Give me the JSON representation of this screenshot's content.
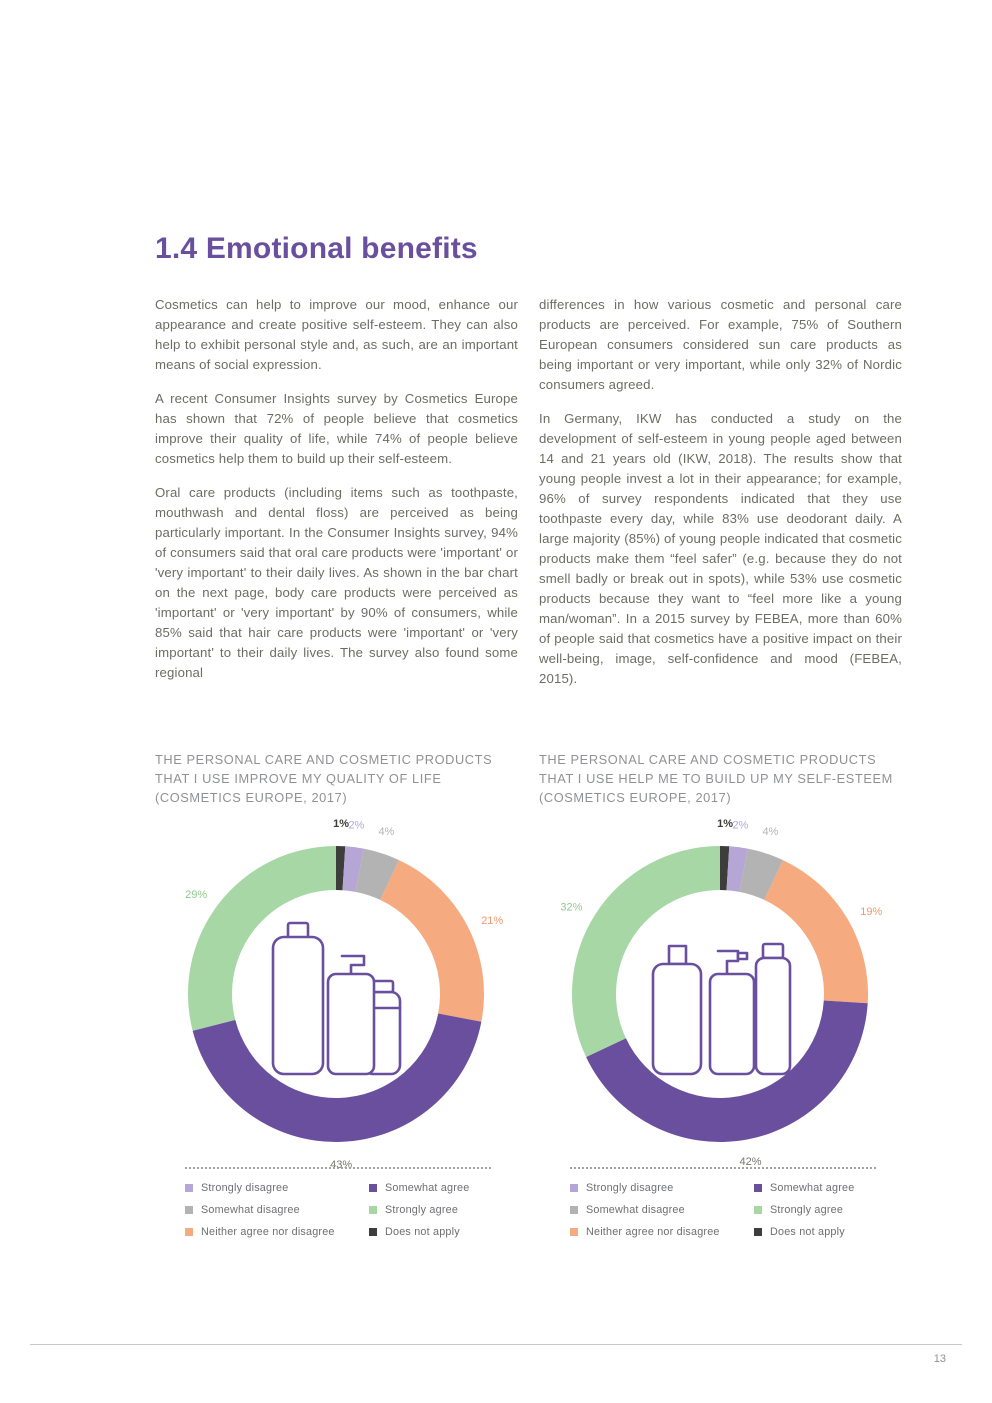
{
  "page": {
    "title": "1.4 Emotional benefits",
    "page_number": "13"
  },
  "body": {
    "left_column": [
      "Cosmetics can help to improve our mood, enhance our appearance and create positive self-esteem. They can also help to exhibit personal style and, as such, are an important means of social expression.",
      "A recent Consumer Insights survey by Cosmetics Europe has shown that 72% of people believe that cosmetics improve their quality of life, while 74% of people believe cosmetics help them to build up their self-esteem.",
      "Oral care products (including items such as toothpaste, mouthwash and dental floss) are perceived as being particularly important. In the Consumer Insights survey, 94% of consumers said that oral care products were 'important' or 'very important' to their daily lives. As shown in the bar chart on the next page, body care products were perceived as 'important' or 'very important' by 90% of consumers, while 85% said that hair care products were 'important' or 'very important' to their daily lives. The survey also found some regional"
    ],
    "right_column": [
      "differences in how various cosmetic and personal care products are perceived. For example, 75% of Southern European consumers considered sun care products as being important or very important, while only 32% of Nordic consumers agreed.",
      "In Germany, IKW has conducted a study on the development of self-esteem in young people aged between 14 and 21 years old (IKW, 2018). The results show that young people invest a lot in their appearance; for example, 96% of survey respondents indicated that they use toothpaste every day, while 83% use deodorant daily. A large majority (85%) of young people indicated that cosmetic products make them “feel safer” (e.g. because they do not smell badly or break out in spots), while 53% use cosmetic products because they want to “feel more like a young man/woman”. In a 2015 survey by FEBEA, more than 60% of people said that cosmetics have a positive impact on their well-being, image, self-confidence and mood (FEBEA, 2015)."
    ],
    "legend_order": [
      "Strongly disagree",
      "Somewhat disagree",
      "Neither agree nor disagree",
      "Somewhat agree",
      "Strongly agree",
      "Does not apply"
    ]
  },
  "colors": {
    "accent_purple": "#6a4f9e",
    "strongly_disagree": "#b5a6d5",
    "somewhat_disagree": "#b3b3b3",
    "neither_agree_nor_disagree": "#f6aa80",
    "somewhat_agree": "#6a4f9f",
    "strongly_agree": "#a6d7a5",
    "does_not_apply": "#3d3d3c",
    "body_text": "#6c6c65",
    "chart_title_text": "#8f9194"
  },
  "chart_data": [
    {
      "type": "pie",
      "donut": true,
      "title": "THE PERSONAL CARE AND COSMETIC PRODUCTS THAT I USE IMPROVE MY QUALITY OF LIFE (COSMETICS EUROPE, 2017)",
      "icon": "cosmetic-bottles-icon",
      "legend_position": "bottom",
      "slices": [
        {
          "label": "Does not apply",
          "value": 1,
          "color": "#3d3d3c",
          "label_color": "#3d3d3c",
          "bold": true
        },
        {
          "label": "Strongly disagree",
          "value": 2,
          "color": "#b5a6d5",
          "label_color": "#b5a6d5"
        },
        {
          "label": "Somewhat disagree",
          "value": 4,
          "color": "#b3b3b3",
          "label_color": "#b3b3b3"
        },
        {
          "label": "Neither agree nor disagree",
          "value": 21,
          "color": "#f6aa80",
          "label_color": "#f0986c"
        },
        {
          "label": "Somewhat agree",
          "value": 43,
          "color": "#6a4f9f",
          "label_color": "#77776f"
        },
        {
          "label": "Strongly agree",
          "value": 29,
          "color": "#a6d7a5",
          "label_color": "#8fca8e"
        }
      ]
    },
    {
      "type": "pie",
      "donut": true,
      "title": "THE PERSONAL CARE AND COSMETIC PRODUCTS THAT I USE HELP ME TO BUILD UP MY SELF-ESTEEM (COSMETICS EUROPE, 2017)",
      "icon": "cosmetic-spray-bottles-icon",
      "legend_position": "bottom",
      "slices": [
        {
          "label": "Does not apply",
          "value": 1,
          "color": "#3d3d3c",
          "label_color": "#3d3d3c",
          "bold": true
        },
        {
          "label": "Strongly disagree",
          "value": 2,
          "color": "#b5a6d5",
          "label_color": "#b5a6d5"
        },
        {
          "label": "Somewhat disagree",
          "value": 4,
          "color": "#b3b3b3",
          "label_color": "#b3b3b3"
        },
        {
          "label": "Neither agree nor disagree",
          "value": 19,
          "color": "#f6aa80",
          "label_color": "#f0986c"
        },
        {
          "label": "Somewhat agree",
          "value": 42,
          "color": "#6a4f9f",
          "label_color": "#77776f"
        },
        {
          "label": "Strongly agree",
          "value": 32,
          "color": "#a6d7a5",
          "label_color": "#8fca8e"
        }
      ]
    }
  ]
}
